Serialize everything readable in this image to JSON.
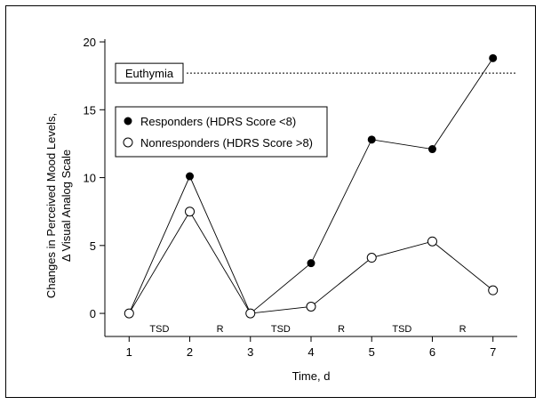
{
  "chart_data": {
    "type": "line",
    "title": "",
    "xlabel": "Time, d",
    "ylabel": [
      "Changes in Perceived Mood Levels,",
      "Δ Visual Analog Scale"
    ],
    "x": [
      1,
      2,
      3,
      4,
      5,
      6,
      7
    ],
    "xlim": [
      0.6,
      7.4
    ],
    "ylim": [
      -1.7,
      20.2
    ],
    "xticks": [
      1,
      2,
      3,
      4,
      5,
      6,
      7
    ],
    "yticks": [
      0,
      5,
      10,
      15,
      20
    ],
    "grid": false,
    "legend_position": "upper-left",
    "series": [
      {
        "name": "Responders (HDRS Score <8)",
        "marker": "filled-circle",
        "values": [
          0,
          10.1,
          0,
          3.7,
          12.8,
          12.1,
          18.8
        ]
      },
      {
        "name": "Nonresponders (HDRS Score >8)",
        "marker": "open-circle",
        "values": [
          0,
          7.5,
          0,
          0.5,
          4.1,
          5.3,
          1.7
        ]
      }
    ],
    "reference_line": {
      "label": "Euthymia",
      "y": 17.7,
      "style": "dashed"
    },
    "phase_labels": [
      {
        "label": "TSD",
        "x": 1.5
      },
      {
        "label": "R",
        "x": 2.5
      },
      {
        "label": "TSD",
        "x": 3.5
      },
      {
        "label": "R",
        "x": 4.5
      },
      {
        "label": "TSD",
        "x": 5.5
      },
      {
        "label": "R",
        "x": 6.5
      }
    ]
  }
}
